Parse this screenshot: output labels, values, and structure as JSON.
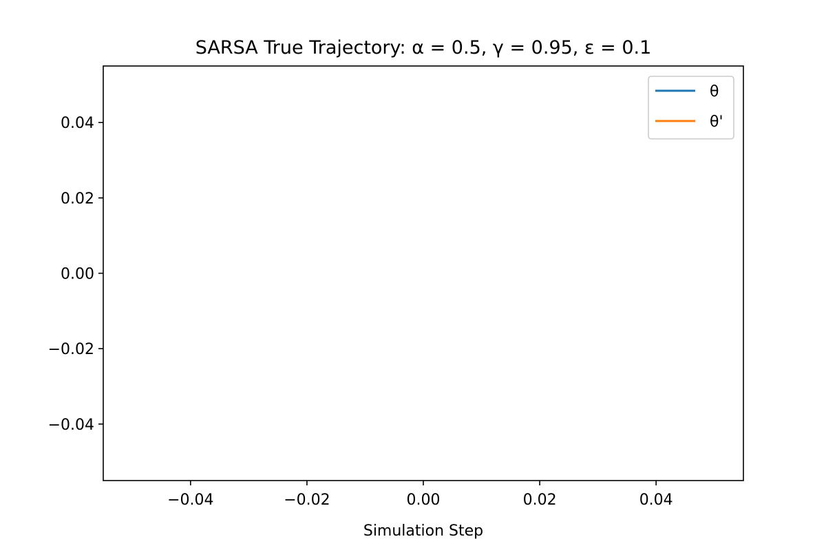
{
  "chart_data": {
    "type": "line",
    "title": "SARSA True Trajectory: α = 0.5, γ = 0.95, ε = 0.1",
    "xlabel": "Simulation Step",
    "ylabel": "",
    "xlim": [
      -0.055,
      0.055
    ],
    "ylim": [
      -0.055,
      0.055
    ],
    "xticks": [
      -0.04,
      -0.02,
      0.0,
      0.02,
      0.04
    ],
    "xtick_labels": [
      "−0.04",
      "−0.02",
      "0.00",
      "0.02",
      "0.04"
    ],
    "yticks": [
      -0.04,
      -0.02,
      0.0,
      0.02,
      0.04
    ],
    "ytick_labels": [
      "−0.04",
      "−0.02",
      "0.00",
      "0.02",
      "0.04"
    ],
    "grid": false,
    "legend_position": "top-right",
    "series": [
      {
        "name": "θ",
        "color": "#1f77b4",
        "x": [],
        "y": []
      },
      {
        "name": "θ'",
        "color": "#ff7f0e",
        "x": [],
        "y": []
      }
    ]
  }
}
